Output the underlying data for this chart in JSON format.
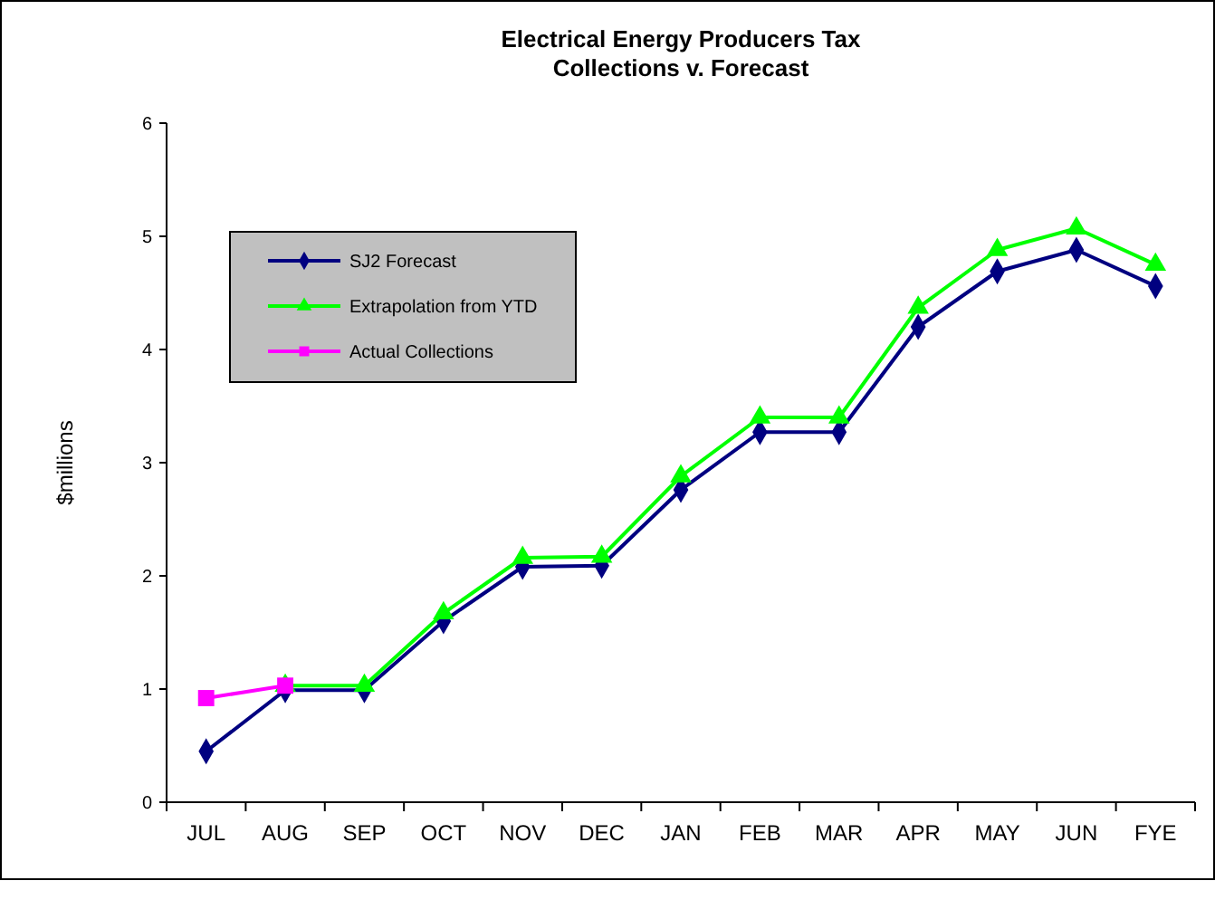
{
  "chart_data": {
    "type": "line",
    "title": "Electrical Energy Producers Tax\nCollections v. Forecast",
    "ylabel": "$millions",
    "categories": [
      "JUL",
      "AUG",
      "SEP",
      "OCT",
      "NOV",
      "DEC",
      "JAN",
      "FEB",
      "MAR",
      "APR",
      "MAY",
      "JUN",
      "FYE"
    ],
    "series": [
      {
        "name": "SJ2 Forecast",
        "color": "#000080",
        "marker": "diamond",
        "values": [
          0.45,
          0.99,
          0.99,
          1.6,
          2.08,
          2.09,
          2.76,
          3.27,
          3.27,
          4.2,
          4.69,
          4.88,
          4.56
        ]
      },
      {
        "name": "Extrapolation from YTD",
        "color": "#00ff00",
        "marker": "triangle",
        "values": [
          null,
          1.03,
          1.03,
          1.67,
          2.16,
          2.17,
          2.88,
          3.4,
          3.4,
          4.37,
          4.88,
          5.07,
          4.75
        ]
      },
      {
        "name": "Actual Collections",
        "color": "#ff00ff",
        "marker": "square",
        "values": [
          0.92,
          1.03,
          null,
          null,
          null,
          null,
          null,
          null,
          null,
          null,
          null,
          null,
          null
        ]
      }
    ],
    "ylim": [
      0,
      6
    ],
    "yticks": [
      0,
      1,
      2,
      3,
      4,
      5,
      6
    ],
    "grid": false,
    "legend": "top left"
  }
}
